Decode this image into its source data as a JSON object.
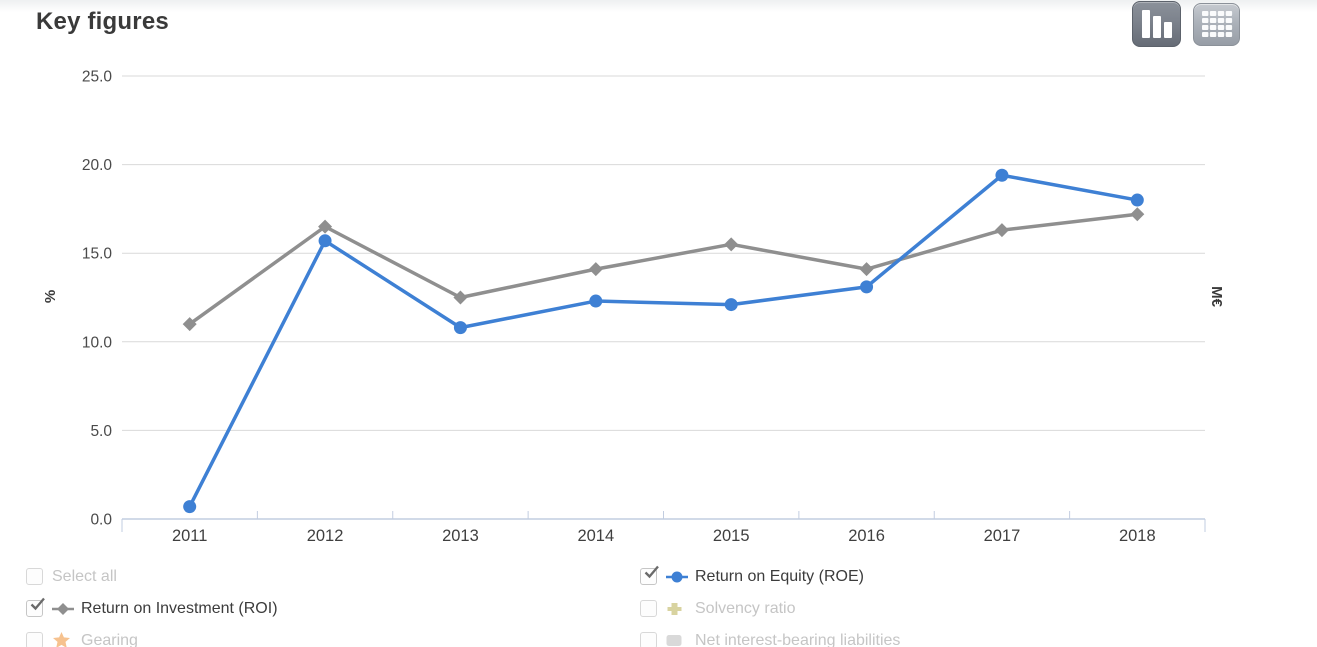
{
  "page": {
    "title": "Key figures"
  },
  "toolbar": {
    "chart_view_button": {
      "icon": "bar-chart-icon",
      "active": true
    },
    "table_view_button": {
      "icon": "table-icon",
      "active": false
    }
  },
  "chart_data": {
    "type": "line",
    "title": "Key figures",
    "x": [
      "2011",
      "2012",
      "2013",
      "2014",
      "2015",
      "2016",
      "2017",
      "2018"
    ],
    "ylabel_left": "%",
    "ylabel_right": "M€",
    "ylim": [
      0,
      25
    ],
    "yticks": [
      0,
      5,
      10,
      15,
      20,
      25
    ],
    "ytick_labels": [
      "0.0",
      "5.0",
      "10.0",
      "15.0",
      "20.0",
      "25.0"
    ],
    "grid": true,
    "series": [
      {
        "name": "Return on Equity (ROE)",
        "color": "#3e80d4",
        "marker": "circle",
        "values": [
          0.7,
          15.7,
          10.8,
          12.3,
          12.1,
          13.1,
          19.4,
          18.0
        ]
      },
      {
        "name": "Return on Investment (ROI)",
        "color": "#8f8f8f",
        "marker": "diamond",
        "values": [
          11.0,
          16.5,
          12.5,
          14.1,
          15.5,
          14.1,
          16.3,
          17.2
        ]
      }
    ],
    "axis_color": "#c2cde0",
    "grid_color": "#d9d9d9"
  },
  "legend": {
    "columns": [
      {
        "items": [
          {
            "label": "Select all",
            "checked": false,
            "enabled": false,
            "marker": null,
            "color": null
          },
          {
            "label": "Return on Investment (ROI)",
            "checked": true,
            "enabled": true,
            "marker": "diamond-line",
            "color": "#8f8f8f"
          },
          {
            "label": "Gearing",
            "checked": false,
            "enabled": false,
            "marker": "star",
            "color": "#f6c28f"
          }
        ]
      },
      {
        "items": [
          {
            "label": "Return on Equity (ROE)",
            "checked": true,
            "enabled": true,
            "marker": "circle-line",
            "color": "#3e80d4"
          },
          {
            "label": "Solvency ratio",
            "checked": false,
            "enabled": false,
            "marker": "cross",
            "color": "#d8d3a0"
          },
          {
            "label": "Net interest-bearing liabilities",
            "checked": false,
            "enabled": false,
            "marker": "square",
            "color": "#d9d9d9"
          }
        ]
      }
    ]
  }
}
